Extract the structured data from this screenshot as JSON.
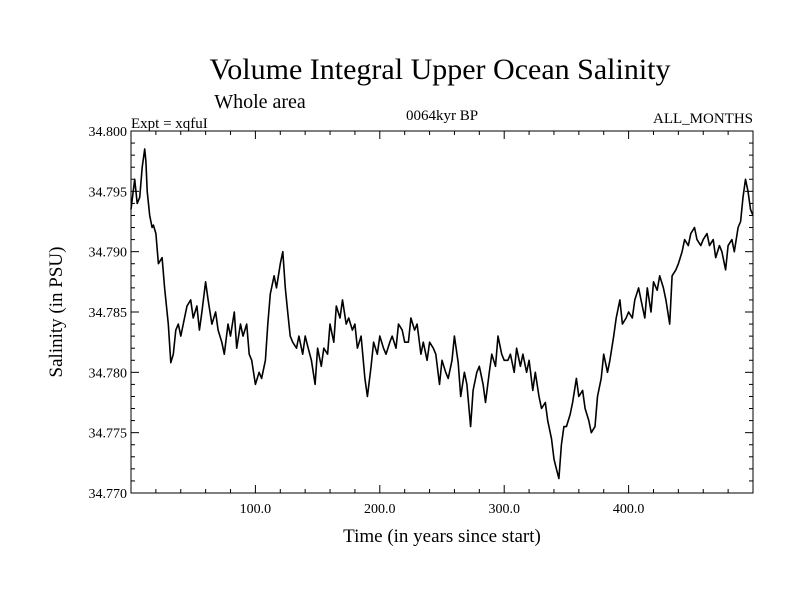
{
  "chart_data": {
    "type": "line",
    "title": "Volume Integral Upper Ocean Salinity",
    "subtitle_left": "Whole area",
    "experiment": "Expt = xqfuI",
    "period": "0064kyr BP",
    "months": "ALL_MONTHS",
    "xlabel": "Time (in years since start)",
    "ylabel": "Salinity (in PSU)",
    "xlim": [
      0,
      500
    ],
    "ylim": [
      34.77,
      34.8
    ],
    "x_ticks": [
      100,
      200,
      300,
      400
    ],
    "x_tick_labels": [
      "100.0",
      "200.0",
      "300.0",
      "400.0"
    ],
    "y_ticks": [
      34.77,
      34.775,
      34.78,
      34.785,
      34.79,
      34.795,
      34.8
    ],
    "y_tick_labels": [
      "34.770",
      "34.775",
      "34.780",
      "34.785",
      "34.790",
      "34.795",
      "34.800"
    ],
    "series": [
      {
        "name": "salinity",
        "x": [
          0,
          3,
          5,
          7,
          9,
          11,
          12,
          13,
          15,
          17,
          18,
          20,
          22,
          25,
          27,
          30,
          32,
          34,
          36,
          38,
          40,
          43,
          45,
          48,
          50,
          53,
          55,
          57,
          60,
          62,
          65,
          68,
          70,
          73,
          75,
          78,
          80,
          83,
          85,
          88,
          90,
          93,
          95,
          97,
          100,
          103,
          105,
          108,
          110,
          112,
          115,
          117,
          120,
          122,
          124,
          126,
          128,
          130,
          133,
          135,
          138,
          140,
          142,
          145,
          148,
          150,
          153,
          155,
          158,
          160,
          163,
          165,
          168,
          170,
          173,
          175,
          178,
          180,
          182,
          185,
          188,
          190,
          193,
          195,
          198,
          200,
          203,
          205,
          208,
          210,
          213,
          215,
          218,
          220,
          223,
          225,
          228,
          230,
          233,
          235,
          238,
          240,
          243,
          245,
          248,
          250,
          253,
          255,
          258,
          260,
          263,
          265,
          268,
          270,
          273,
          275,
          278,
          280,
          283,
          285,
          288,
          290,
          293,
          295,
          298,
          300,
          303,
          305,
          308,
          310,
          313,
          315,
          318,
          320,
          323,
          325,
          328,
          330,
          333,
          335,
          338,
          340,
          342,
          344,
          346,
          348,
          350,
          353,
          355,
          358,
          360,
          363,
          365,
          368,
          370,
          373,
          375,
          378,
          380,
          383,
          385,
          388,
          390,
          393,
          395,
          398,
          400,
          403,
          405,
          408,
          410,
          413,
          415,
          418,
          420,
          423,
          425,
          428,
          430,
          433,
          435,
          438,
          440,
          443,
          445,
          448,
          450,
          453,
          455,
          458,
          460,
          463,
          465,
          468,
          470,
          473,
          475,
          478,
          480,
          483,
          485,
          488,
          490,
          492,
          494,
          496,
          498,
          500
        ],
        "values": [
          34.7935,
          34.796,
          34.794,
          34.7945,
          34.797,
          34.7985,
          34.7975,
          34.795,
          34.793,
          34.792,
          34.7922,
          34.7915,
          34.789,
          34.7895,
          34.787,
          34.784,
          34.7808,
          34.7815,
          34.7835,
          34.784,
          34.783,
          34.7845,
          34.7855,
          34.786,
          34.7845,
          34.7855,
          34.7835,
          34.785,
          34.7875,
          34.786,
          34.784,
          34.785,
          34.7835,
          34.7825,
          34.7815,
          34.784,
          34.783,
          34.785,
          34.782,
          34.784,
          34.783,
          34.784,
          34.7815,
          34.781,
          34.779,
          34.78,
          34.7795,
          34.781,
          34.784,
          34.7865,
          34.788,
          34.787,
          34.789,
          34.79,
          34.787,
          34.785,
          34.783,
          34.7825,
          34.782,
          34.783,
          34.7815,
          34.783,
          34.7822,
          34.781,
          34.779,
          34.782,
          34.7805,
          34.782,
          34.7815,
          34.784,
          34.7825,
          34.7855,
          34.7845,
          34.786,
          34.784,
          34.7845,
          34.7835,
          34.784,
          34.782,
          34.783,
          34.7795,
          34.778,
          34.7805,
          34.7825,
          34.7815,
          34.783,
          34.782,
          34.7815,
          34.7825,
          34.783,
          34.782,
          34.784,
          34.7835,
          34.7825,
          34.7825,
          34.7845,
          34.7835,
          34.784,
          34.7815,
          34.7825,
          34.781,
          34.7825,
          34.782,
          34.7815,
          34.779,
          34.781,
          34.78,
          34.7795,
          34.781,
          34.783,
          34.7808,
          34.778,
          34.78,
          34.779,
          34.7755,
          34.7785,
          34.78,
          34.7805,
          34.779,
          34.7775,
          34.78,
          34.7815,
          34.7805,
          34.783,
          34.7815,
          34.781,
          34.781,
          34.7815,
          34.78,
          34.782,
          34.7805,
          34.7815,
          34.78,
          34.781,
          34.7785,
          34.78,
          34.778,
          34.777,
          34.7775,
          34.776,
          34.7745,
          34.7728,
          34.772,
          34.7712,
          34.774,
          34.7755,
          34.7755,
          34.7765,
          34.7775,
          34.7795,
          34.778,
          34.7785,
          34.777,
          34.776,
          34.775,
          34.7755,
          34.778,
          34.7795,
          34.7815,
          34.78,
          34.781,
          34.783,
          34.7845,
          34.786,
          34.784,
          34.7845,
          34.785,
          34.7845,
          34.786,
          34.787,
          34.786,
          34.7845,
          34.787,
          34.785,
          34.7875,
          34.7868,
          34.788,
          34.787,
          34.786,
          34.784,
          34.788,
          34.7885,
          34.789,
          34.79,
          34.791,
          34.7905,
          34.7915,
          34.792,
          34.791,
          34.7905,
          34.791,
          34.7915,
          34.7905,
          34.791,
          34.7895,
          34.7905,
          34.79,
          34.7885,
          34.7905,
          34.791,
          34.79,
          34.792,
          34.7925,
          34.7945,
          34.796,
          34.795,
          34.7935,
          34.793
        ]
      }
    ]
  }
}
